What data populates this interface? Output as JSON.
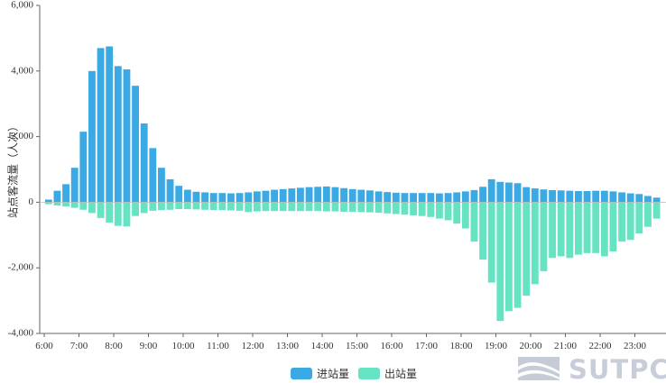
{
  "chart_data": {
    "type": "bar",
    "ylabel": "站点客流量（人次）",
    "ylim": [
      -4000,
      6000
    ],
    "yticks": [
      -4000,
      -2000,
      0,
      2000,
      4000,
      6000
    ],
    "ytick_labels": [
      "-4,000",
      "-2,000",
      "0",
      "2,000",
      "4,000",
      "6,000"
    ],
    "xticks": [
      "6:00",
      "7:00",
      "8:00",
      "9:00",
      "10:00",
      "11:00",
      "12:00",
      "13:00",
      "14:00",
      "15:00",
      "16:00",
      "17:00",
      "18:00",
      "19:00",
      "20:00",
      "21:00",
      "22:00",
      "23:00"
    ],
    "interval_minutes": 15,
    "start": "6:00",
    "legend_position": "bottom-center",
    "series": [
      {
        "name": "进站量",
        "color": "#3aa9e4",
        "values": [
          20,
          80,
          350,
          550,
          1050,
          2150,
          4000,
          4700,
          4750,
          4150,
          4050,
          3550,
          2400,
          1650,
          1050,
          700,
          500,
          380,
          320,
          300,
          280,
          280,
          270,
          280,
          300,
          330,
          350,
          380,
          400,
          420,
          440,
          460,
          470,
          480,
          460,
          430,
          400,
          380,
          360,
          330,
          310,
          290,
          280,
          280,
          280,
          280,
          270,
          280,
          300,
          330,
          370,
          470,
          700,
          620,
          600,
          580,
          460,
          420,
          390,
          370,
          360,
          350,
          340,
          340,
          350,
          350,
          330,
          300,
          270,
          250,
          190,
          140,
          80,
          40
        ]
      },
      {
        "name": "出站量",
        "color": "#66e3c2",
        "values": [
          -30,
          -60,
          -100,
          -130,
          -170,
          -230,
          -330,
          -480,
          -620,
          -720,
          -740,
          -420,
          -330,
          -260,
          -240,
          -230,
          -210,
          -210,
          -220,
          -230,
          -240,
          -240,
          -250,
          -260,
          -300,
          -280,
          -270,
          -270,
          -270,
          -270,
          -270,
          -270,
          -270,
          -280,
          -280,
          -290,
          -290,
          -300,
          -310,
          -320,
          -340,
          -360,
          -380,
          -400,
          -420,
          -450,
          -500,
          -550,
          -650,
          -800,
          -1200,
          -1750,
          -2450,
          -3620,
          -3320,
          -3220,
          -2850,
          -2500,
          -2100,
          -1700,
          -1650,
          -1700,
          -1600,
          -1550,
          -1550,
          -1650,
          -1500,
          -1200,
          -1150,
          -950,
          -750,
          -500,
          -230,
          -60
        ]
      }
    ],
    "watermark": "SUTPC"
  }
}
